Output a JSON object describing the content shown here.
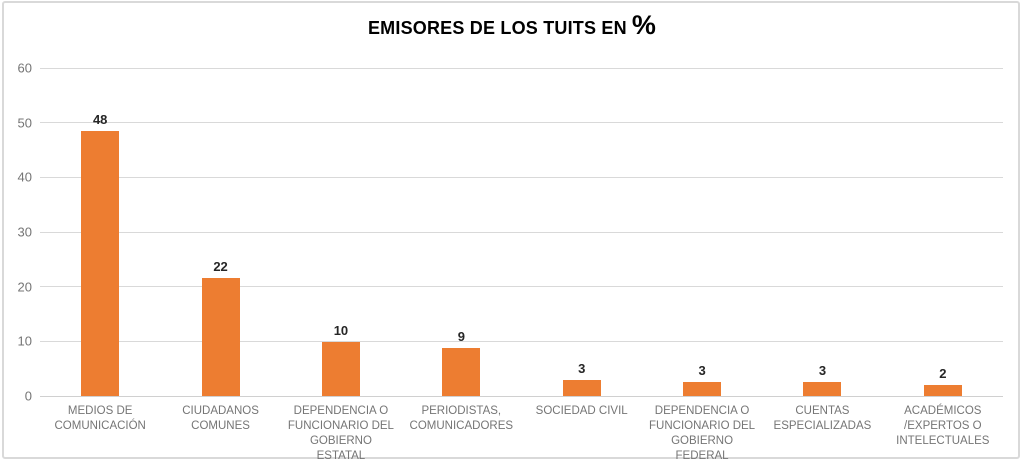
{
  "title": {
    "text": "EMISORES DE LOS TUITS EN",
    "suffix": "%"
  },
  "chart_data": {
    "type": "bar",
    "title": "EMISORES DE LOS TUITS EN %",
    "categories": [
      "MEDIOS DE COMUNICACIÓN",
      "CIUDADANOS COMUNES",
      "DEPENDENCIA O FUNCIONARIO DEL GOBIERNO ESTATAL",
      "PERIODISTAS, COMUNICADORES",
      "SOCIEDAD CIVIL",
      "DEPENDENCIA O FUNCIONARIO DEL GOBIERNO FEDERAL",
      "CUENTAS ESPECIALIZADAS",
      "ACADÉMICOS /EXPERTOS O INTELECTUALES"
    ],
    "values": [
      48,
      22,
      10,
      9,
      3,
      3,
      3,
      2
    ],
    "rendered_heights": [
      48.4,
      21.6,
      9.8,
      8.7,
      2.9,
      2.5,
      2.5,
      2.1
    ],
    "xlabel": "",
    "ylabel": "",
    "ylim": [
      0,
      60
    ],
    "y_ticks": [
      0,
      10,
      20,
      30,
      40,
      50,
      60
    ],
    "grid": true,
    "legend": false,
    "colors": {
      "bar": "#ED7D31",
      "gridline": "#D9D9D9",
      "axis_line": "#D0D0D0",
      "axis_text": "#757575",
      "value_label": "#262626",
      "title": "#000000",
      "frame_border": "#D9D9D9"
    }
  }
}
